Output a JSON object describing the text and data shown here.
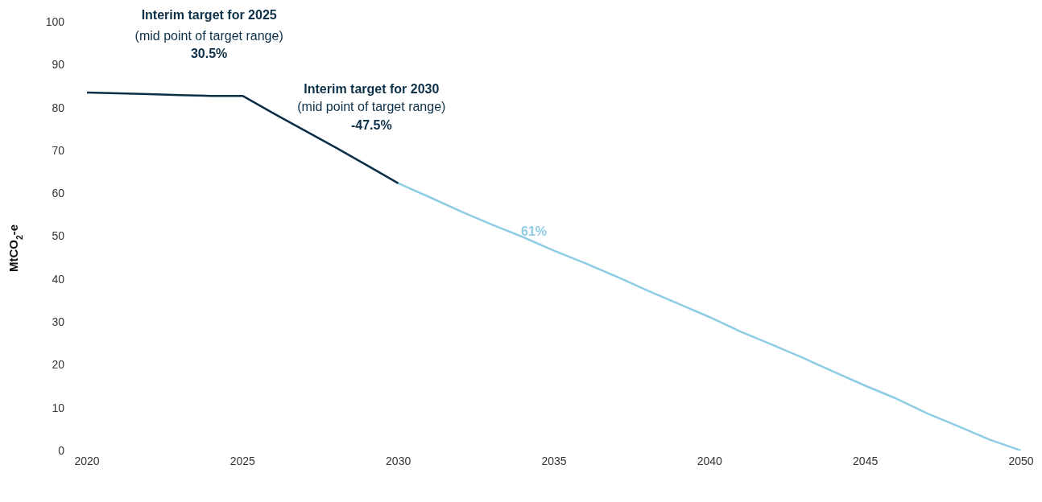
{
  "chart_data": {
    "type": "line",
    "ylabel": "MtCO$_{2}$-e",
    "x": [
      2020,
      2021,
      2022,
      2023,
      2024,
      2025,
      2026,
      2027,
      2028,
      2029,
      2030,
      2031,
      2032,
      2033,
      2034,
      2035,
      2036,
      2037,
      2038,
      2039,
      2040,
      2041,
      2042,
      2043,
      2044,
      2045,
      2046,
      2047,
      2048,
      2049,
      2050
    ],
    "series": [
      {
        "color": "#0b2f47",
        "values": [
          83.5,
          83.3,
          83.1,
          82.9,
          82.7,
          82.7,
          78.6,
          74.6,
          70.6,
          66.5,
          62.3,
          null,
          null,
          null,
          null,
          null,
          null,
          null,
          null,
          null,
          null,
          null,
          null,
          null,
          null,
          null,
          null,
          null,
          null,
          null,
          null
        ]
      },
      {
        "color": "#8ecbe5",
        "values": [
          null,
          null,
          null,
          null,
          null,
          null,
          null,
          null,
          null,
          null,
          62.3,
          59.1,
          55.8,
          52.7,
          49.8,
          46.6,
          43.7,
          40.6,
          37.3,
          34.2,
          31.1,
          27.7,
          24.7,
          21.6,
          18.3,
          15.1,
          12.1,
          8.6,
          5.6,
          2.5,
          0
        ]
      }
    ],
    "xlim": [
      2020,
      2050
    ],
    "xticks": [
      2020,
      2025,
      2030,
      2035,
      2040,
      2045,
      2050
    ],
    "ylim": [
      0,
      100
    ],
    "yticks": [
      0,
      10,
      20,
      30,
      40,
      50,
      60,
      70,
      80,
      90,
      100
    ],
    "grid": false,
    "marker": "none",
    "line_style": "solid",
    "annotations": [
      "Interim target for 2025",
      "(mid point of target range)",
      "30.5%",
      "Interim target for 2030",
      "(mid point of target range)",
      "-47.5%",
      "61%"
    ]
  }
}
